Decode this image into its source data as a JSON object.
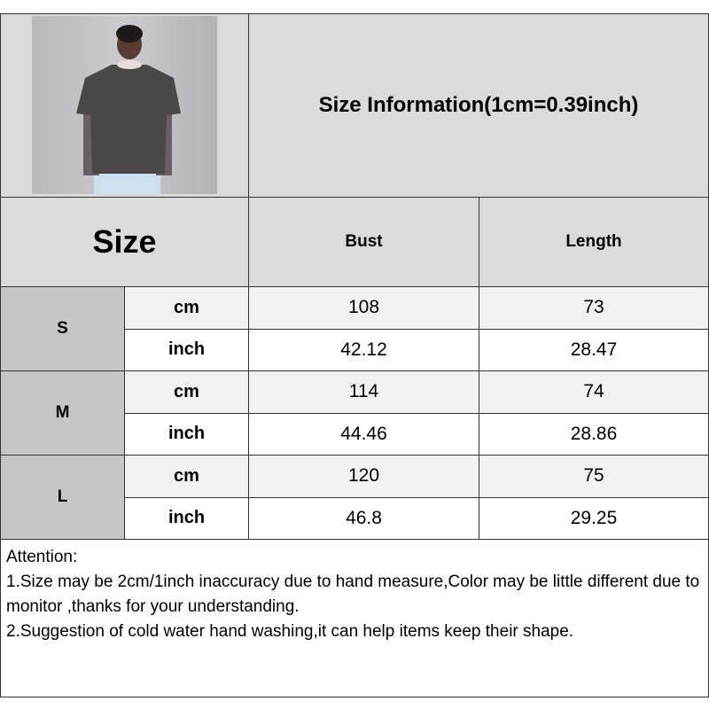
{
  "title": "Size Information(1cm=0.39inch)",
  "header": {
    "size": "Size",
    "bust": "Bust",
    "length": "Length"
  },
  "sizes": [
    {
      "label": "S",
      "cm": {
        "unit": "cm",
        "bust": "108",
        "length": "73"
      },
      "inch": {
        "unit": "inch",
        "bust": "42.12",
        "length": "28.47"
      }
    },
    {
      "label": "M",
      "cm": {
        "unit": "cm",
        "bust": "114",
        "length": "74"
      },
      "inch": {
        "unit": "inch",
        "bust": "44.46",
        "length": "28.86"
      }
    },
    {
      "label": "L",
      "cm": {
        "unit": "cm",
        "bust": "120",
        "length": "75"
      },
      "inch": {
        "unit": "inch",
        "bust": "46.8",
        "length": "29.25"
      }
    }
  ],
  "attention": {
    "heading": "Attention:",
    "line1": "1.Size may be 2cm/1inch inaccuracy due to hand measure,Color may be little different due to monitor ,thanks for your understanding.",
    "line2": "2.Suggestion of cold water hand washing,it can help items keep their shape."
  }
}
